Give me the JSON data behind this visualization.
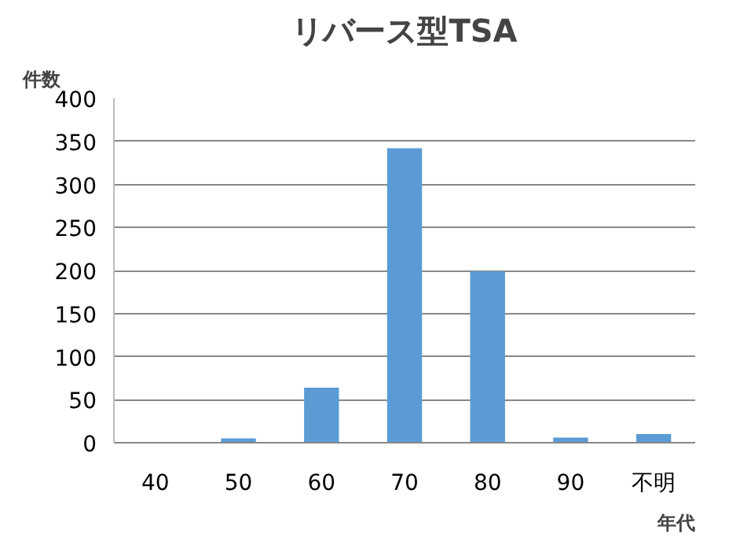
{
  "chart_data": {
    "type": "bar",
    "title": "リバース型TSA",
    "ylabel": "件数",
    "xlabel": "年代",
    "categories": [
      "40",
      "50",
      "60",
      "70",
      "80",
      "90",
      "不明"
    ],
    "values": [
      1,
      5,
      64,
      342,
      199,
      6,
      10
    ],
    "color": "#5b9bd5",
    "ylim": [
      0,
      400
    ],
    "yticks": [
      0,
      50,
      100,
      150,
      200,
      250,
      300,
      350,
      400
    ],
    "grid": "y"
  }
}
